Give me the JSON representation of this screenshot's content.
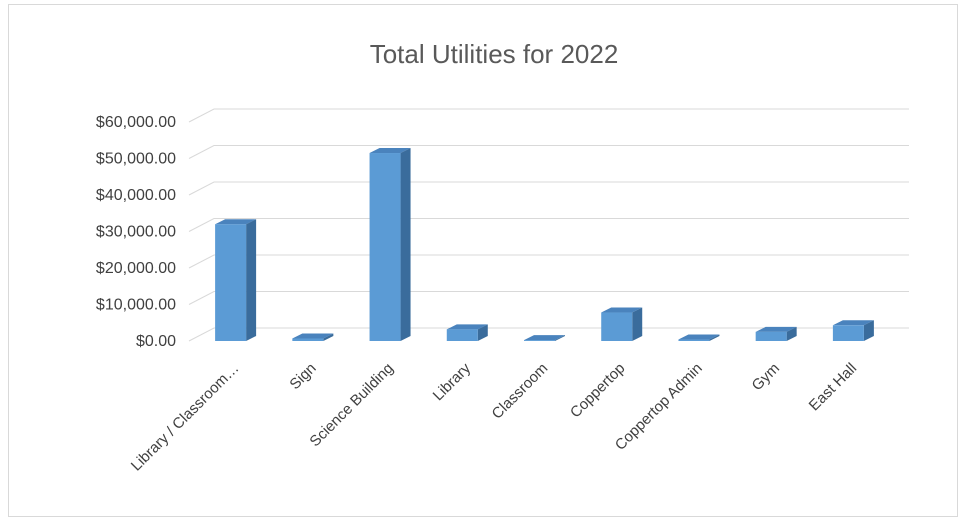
{
  "chart_data": {
    "type": "bar",
    "title": "Total Utilities for 2022",
    "xlabel": "",
    "ylabel": "",
    "categories": [
      "Library / Classroom…",
      "Sign",
      "Science Building",
      "Library",
      "Classroom",
      "Coppertop",
      "Coppertop Admin",
      "Gym",
      "East Hall"
    ],
    "values": [
      32000,
      700,
      51500,
      3200,
      250,
      7800,
      400,
      2500,
      4300
    ],
    "ylim": [
      0,
      60000
    ],
    "yticks": [
      0,
      10000,
      20000,
      30000,
      40000,
      50000,
      60000
    ],
    "ytick_labels": [
      "$0.00",
      "$10,000.00",
      "$20,000.00",
      "$30,000.00",
      "$40,000.00",
      "$50,000.00",
      "$60,000.00"
    ],
    "grid": true,
    "legend": "none",
    "style": "3d-column",
    "colors": {
      "bar_front": "#5b9bd5",
      "bar_side": "#3a6c9c",
      "bar_top": "#4a83bd",
      "grid": "#d9d9d9",
      "text": "#404040",
      "title": "#595959"
    }
  }
}
